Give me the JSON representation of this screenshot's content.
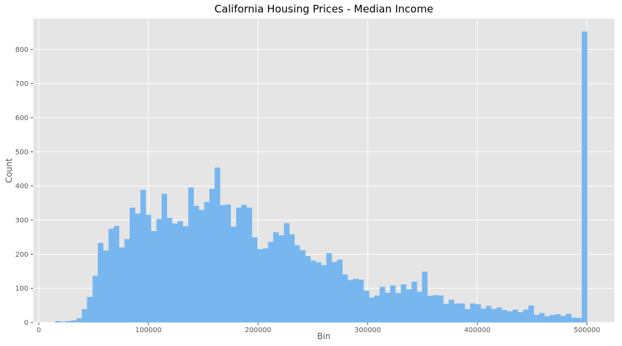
{
  "chart_data": {
    "type": "bar",
    "title": "California Housing Prices - Median Income",
    "xlabel": "Bin",
    "ylabel": "Count",
    "xlim": [
      -5000,
      525000
    ],
    "ylim": [
      0,
      890
    ],
    "x_ticks": [
      0,
      100000,
      200000,
      300000,
      400000,
      500000
    ],
    "y_ticks": [
      0,
      100,
      200,
      300,
      400,
      500,
      600,
      700,
      800
    ],
    "grid": true,
    "legend": "none",
    "bin_start": 14999,
    "bin_width": 4850,
    "counts": [
      4,
      2,
      4,
      6,
      12,
      40,
      75,
      137,
      233,
      211,
      275,
      283,
      220,
      244,
      337,
      319,
      388,
      315,
      268,
      303,
      377,
      306,
      290,
      297,
      282,
      395,
      342,
      329,
      353,
      391,
      454,
      344,
      346,
      281,
      337,
      345,
      337,
      249,
      215,
      217,
      236,
      265,
      255,
      291,
      258,
      226,
      212,
      195,
      181,
      176,
      168,
      203,
      177,
      184,
      141,
      125,
      128,
      126,
      93,
      73,
      79,
      104,
      87,
      108,
      86,
      112,
      97,
      120,
      90,
      149,
      78,
      80,
      79,
      55,
      67,
      56,
      56,
      40,
      56,
      54,
      41,
      49,
      40,
      44,
      36,
      32,
      38,
      30,
      38,
      50,
      22,
      27,
      18,
      22,
      24,
      19,
      25,
      14,
      13,
      852
    ]
  },
  "colors": {
    "plot_background": "#e5e5e5",
    "bar_fill": "#78b6ef",
    "grid": "#ffffff",
    "text": "#555555",
    "title": "#000000"
  }
}
